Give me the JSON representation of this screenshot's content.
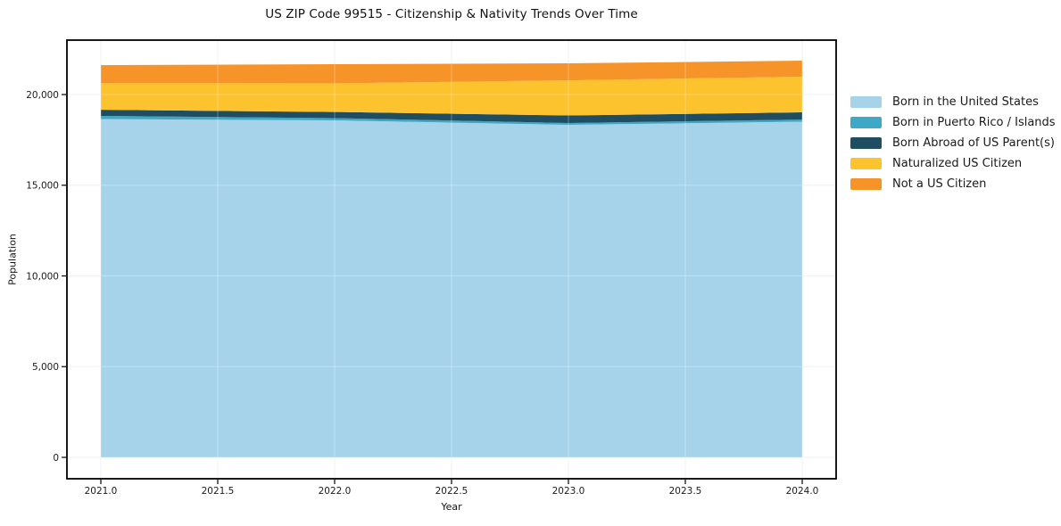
{
  "chart_data": {
    "type": "area",
    "stacked": true,
    "title": "US ZIP Code 99515 - Citizenship & Nativity Trends Over Time",
    "xlabel": "Year",
    "ylabel": "Population",
    "x": [
      2021,
      2022,
      2023,
      2024
    ],
    "series": [
      {
        "name": "Born in the United States",
        "color": "#a6d3ea",
        "values": [
          18650,
          18575,
          18330,
          18500
        ]
      },
      {
        "name": "Born in Puerto Rico / Islands",
        "color": "#3ea8c6",
        "values": [
          170,
          125,
          100,
          120
        ]
      },
      {
        "name": "Born Abroad of US Parent(s)",
        "color": "#1f4e63",
        "values": [
          340,
          340,
          415,
          400
        ]
      },
      {
        "name": "Naturalized US Citizen",
        "color": "#fdc32f",
        "values": [
          1480,
          1580,
          1940,
          1965
        ]
      },
      {
        "name": "Not a US Citizen",
        "color": "#f79429",
        "values": [
          980,
          1050,
          935,
          885
        ]
      }
    ],
    "totals": [
      21620,
      21670,
      21720,
      21870
    ],
    "x_ticks": [
      "2021.0",
      "2021.5",
      "2022.0",
      "2022.5",
      "2023.0",
      "2023.5",
      "2024.0"
    ],
    "x_tick_values": [
      2021,
      2021.5,
      2022,
      2022.5,
      2023,
      2023.5,
      2024
    ],
    "y_ticks": [
      "0",
      "5,000",
      "10,000",
      "15,000",
      "20,000"
    ],
    "y_tick_values": [
      0,
      5000,
      10000,
      15000,
      20000
    ],
    "xlim": [
      2020.855,
      2024.145
    ],
    "ylim": [
      -1180,
      23000
    ],
    "grid": true,
    "legend_position": "right"
  },
  "colors": {
    "background": "#ffffff",
    "axis": "#000000",
    "grid_under": "#ececec",
    "grid_over": "rgba(255,255,255,0.3)",
    "text": "#1a1a1a"
  }
}
